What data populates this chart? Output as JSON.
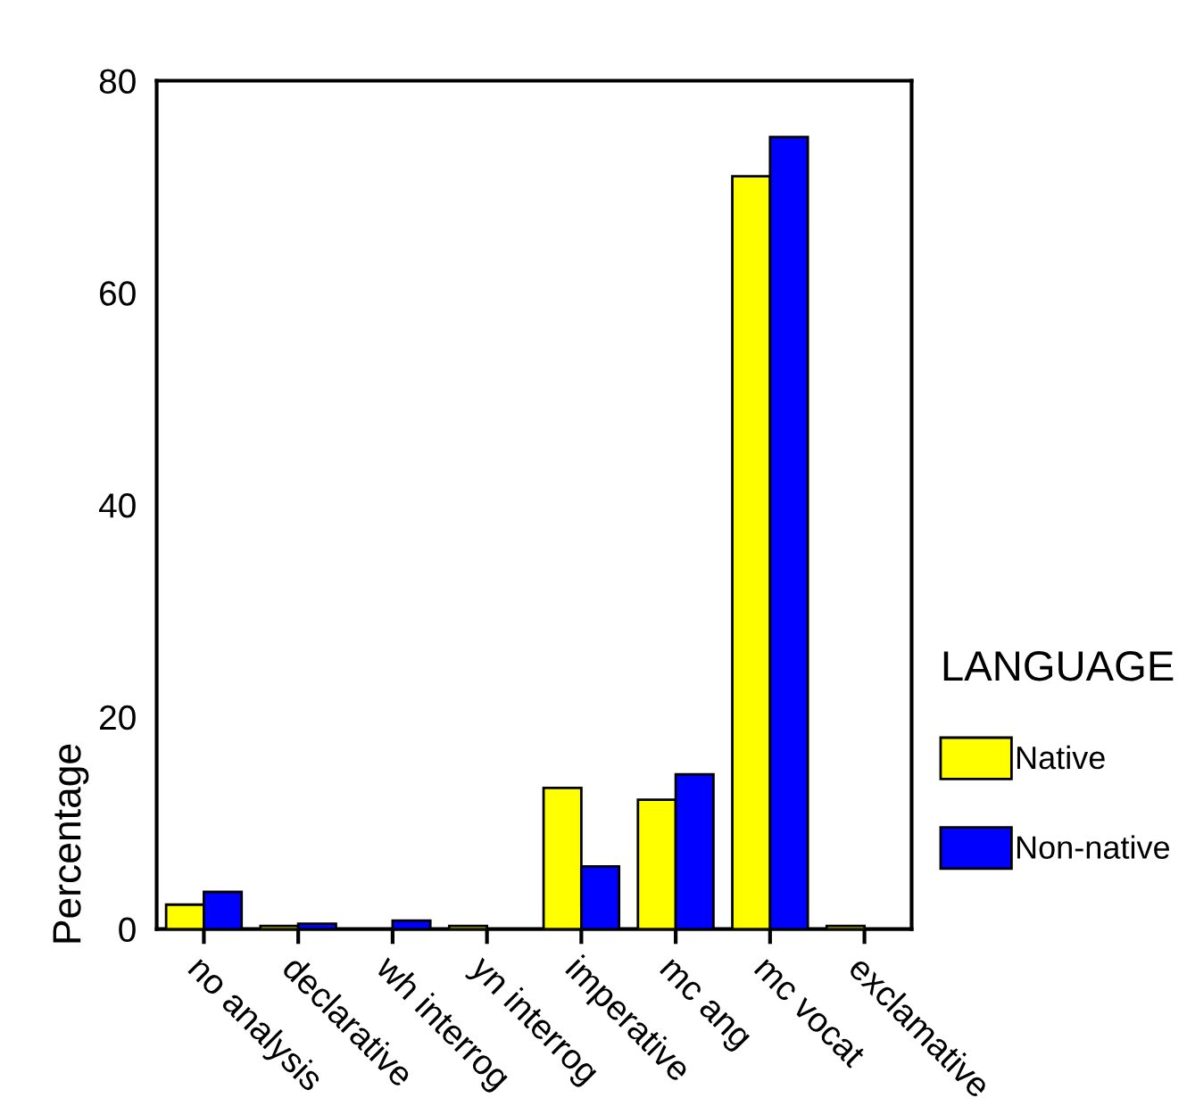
{
  "chart_data": {
    "type": "bar",
    "ylabel": "Percentage",
    "legend_title": "LANGUAGE",
    "categories": [
      "no analysis",
      "declarative",
      "wh interrog",
      "yn interrog",
      "imperative",
      "mc ang",
      "mc vocat",
      "exclamative"
    ],
    "series": [
      {
        "name": "Native",
        "color": "#ffff00",
        "values": [
          2.3,
          0.3,
          null,
          0.3,
          13.3,
          12.2,
          71.0,
          0.3
        ]
      },
      {
        "name": "Non-native",
        "color": "#0000ff",
        "values": [
          3.5,
          0.5,
          0.8,
          null,
          5.9,
          14.6,
          74.7,
          null
        ]
      }
    ],
    "ylim": [
      0,
      80
    ],
    "yticks": [
      0,
      20,
      40,
      60,
      80
    ],
    "grid": false,
    "legend": "right"
  }
}
